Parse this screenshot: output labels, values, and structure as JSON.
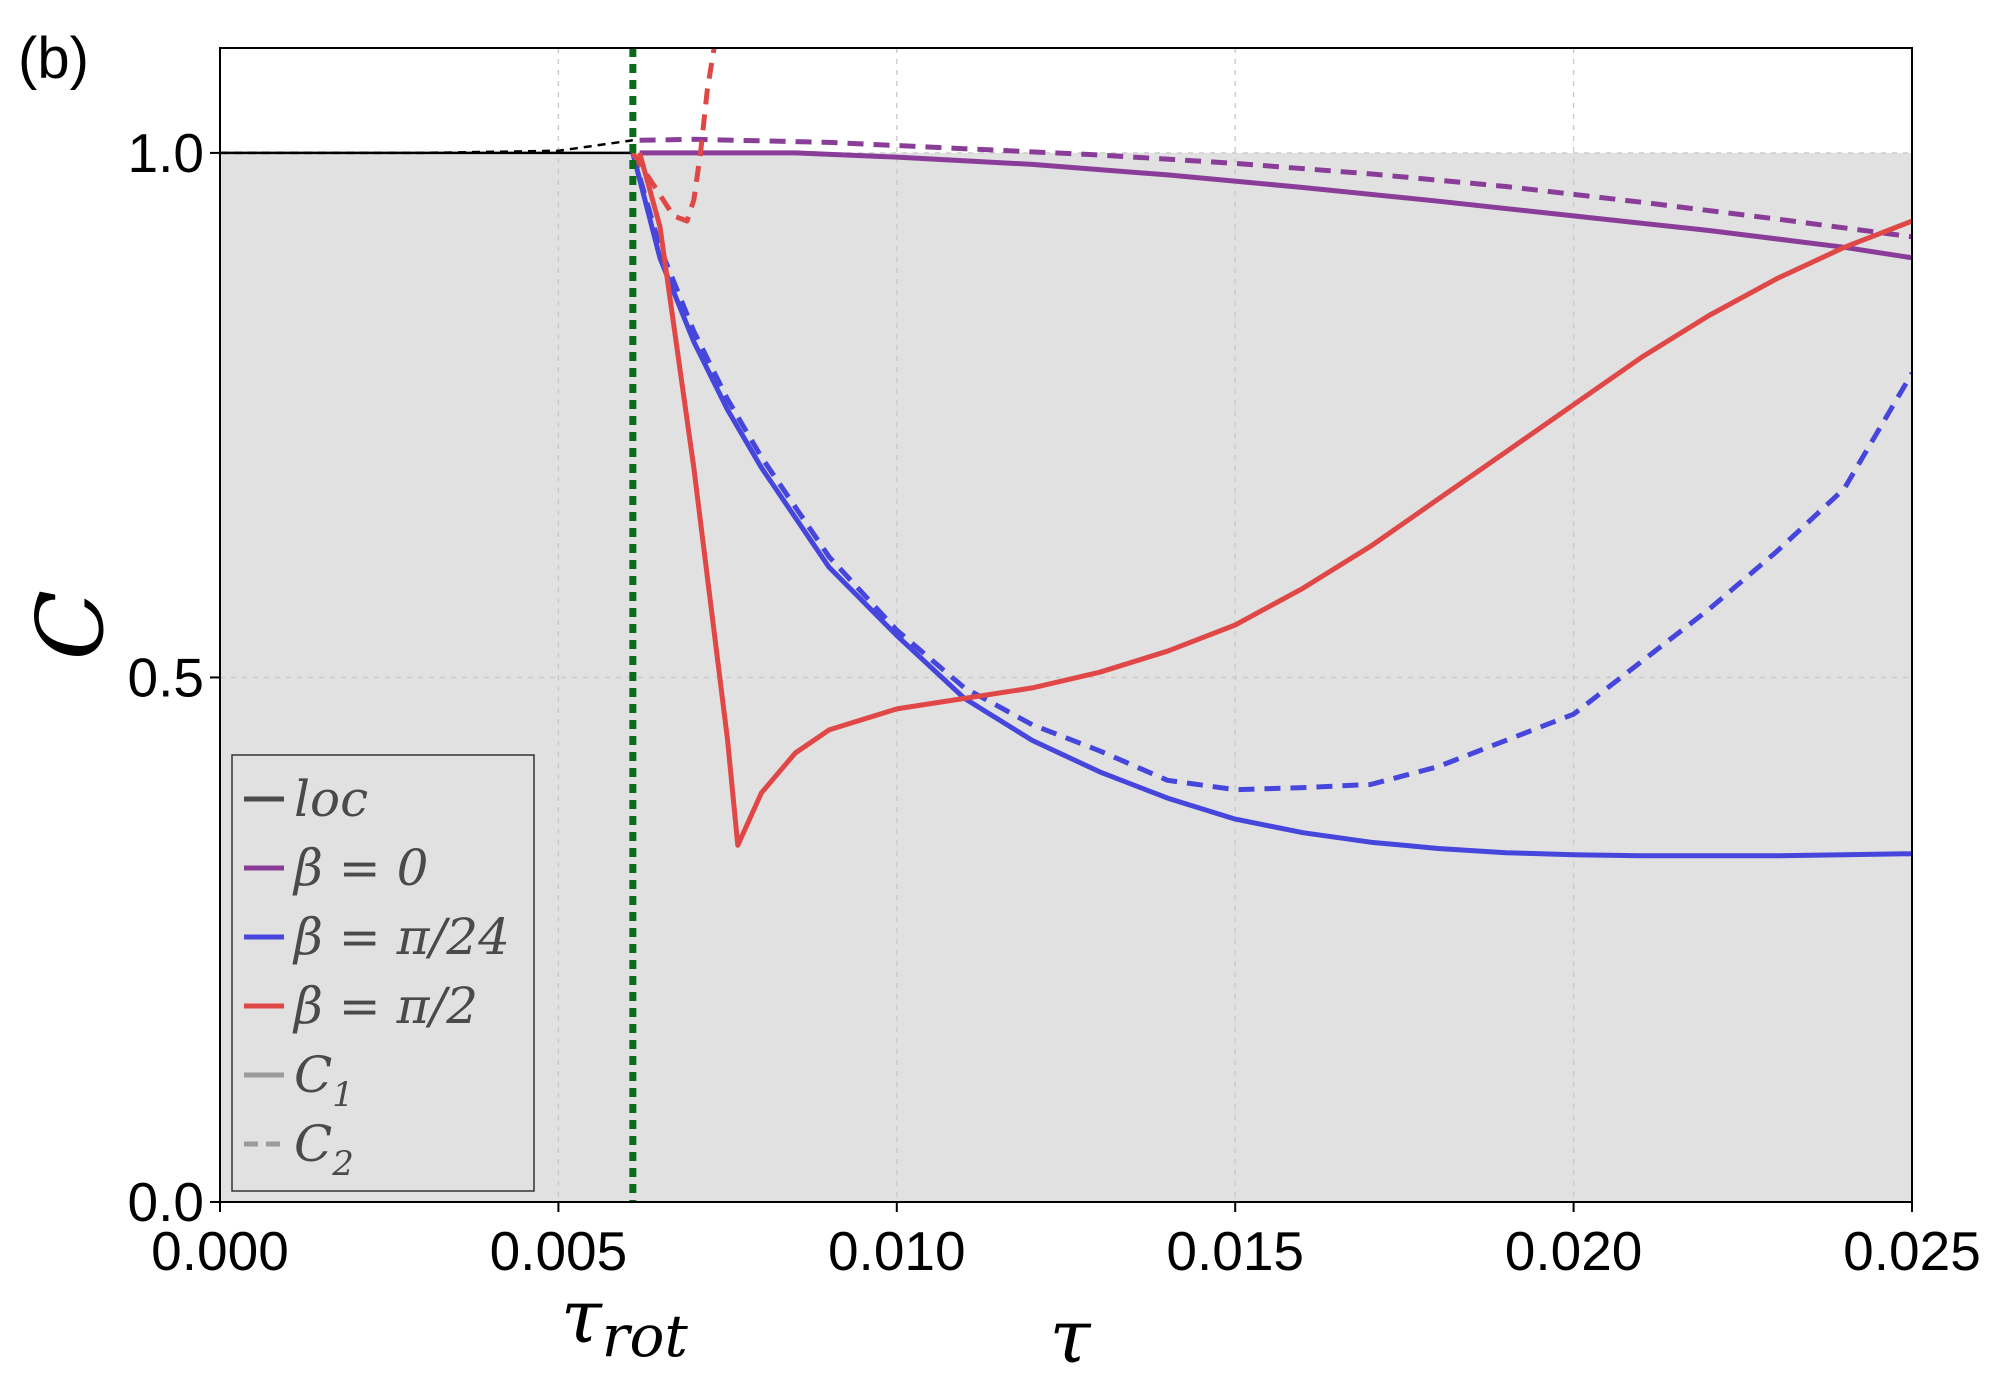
{
  "panel_label": "(b)",
  "colors": {
    "shade": "#e1e1e1",
    "loc": "#000000",
    "beta0": "#8a3d98",
    "beta_pi24": "#4646dc",
    "beta_pi2": "#e04848",
    "tau_rot_line": "#0b6b1a",
    "legend_style": "#9a9a9a"
  },
  "chart_data": {
    "type": "line",
    "title": "",
    "xlabel": "τ",
    "ylabel": "C",
    "xlim": [
      0.0,
      0.025
    ],
    "ylim": [
      0.0,
      1.1
    ],
    "grid": true,
    "shaded_region": {
      "y_from": 0.0,
      "y_to": 1.0
    },
    "x_ticks": [
      "0.000",
      "0.005",
      "0.010",
      "0.015",
      "0.020",
      "0.025"
    ],
    "y_ticks": [
      "0.0",
      "0.5",
      "1.0"
    ],
    "vertical_marker": {
      "x": 0.0061,
      "label": "τrot",
      "label_base": "τ",
      "label_sub": "rot"
    },
    "legend": {
      "position": "lower-left",
      "entries": [
        {
          "label": "loc",
          "style": "solid",
          "color": "#4a4a4a"
        },
        {
          "label": "β = 0",
          "style": "solid",
          "color": "#8a3d98"
        },
        {
          "label": "β = π/24",
          "style": "solid",
          "color": "#4646dc"
        },
        {
          "label": "β = π/2",
          "style": "solid",
          "color": "#e04848"
        },
        {
          "label": "C1",
          "base": "C",
          "sub": "1",
          "style": "solid",
          "color": "#9a9a9a"
        },
        {
          "label": "C2",
          "base": "C",
          "sub": "2",
          "style": "dashed",
          "color": "#9a9a9a"
        }
      ]
    },
    "series": [
      {
        "name": "loc",
        "style": "solid",
        "color": "#000000",
        "x": [
          0.0,
          0.0061
        ],
        "y": [
          1.0,
          1.0
        ]
      },
      {
        "name": "loc",
        "style": "dashed",
        "color": "#000000",
        "x": [
          0.0,
          0.003,
          0.005,
          0.0061
        ],
        "y": [
          1.0,
          1.0,
          1.002,
          1.012
        ]
      },
      {
        "name": "β = 0",
        "style": "solid",
        "color": "#8a3d98",
        "x": [
          0.0062,
          0.007,
          0.0085,
          0.01,
          0.012,
          0.014,
          0.016,
          0.018,
          0.02,
          0.022,
          0.024,
          0.025
        ],
        "y": [
          1.0,
          1.0,
          1.0,
          0.996,
          0.989,
          0.979,
          0.967,
          0.954,
          0.94,
          0.926,
          0.91,
          0.9
        ]
      },
      {
        "name": "β = 0",
        "style": "dashed",
        "color": "#8a3d98",
        "x": [
          0.0062,
          0.007,
          0.009,
          0.011,
          0.013,
          0.015,
          0.017,
          0.019,
          0.021,
          0.023,
          0.025
        ],
        "y": [
          1.012,
          1.013,
          1.01,
          1.004,
          0.998,
          0.99,
          0.98,
          0.968,
          0.953,
          0.937,
          0.92
        ]
      },
      {
        "name": "β = π/24",
        "style": "solid",
        "color": "#4646dc",
        "x": [
          0.0061,
          0.0065,
          0.007,
          0.0075,
          0.008,
          0.009,
          0.01,
          0.011,
          0.012,
          0.013,
          0.014,
          0.015,
          0.016,
          0.017,
          0.018,
          0.019,
          0.02,
          0.021,
          0.022,
          0.023,
          0.024,
          0.025
        ],
        "y": [
          1.0,
          0.9,
          0.82,
          0.755,
          0.7,
          0.605,
          0.54,
          0.48,
          0.44,
          0.41,
          0.385,
          0.365,
          0.352,
          0.343,
          0.337,
          0.333,
          0.331,
          0.33,
          0.33,
          0.33,
          0.331,
          0.332
        ]
      },
      {
        "name": "β = π/24",
        "style": "dashed",
        "color": "#4646dc",
        "x": [
          0.0061,
          0.0065,
          0.007,
          0.0075,
          0.008,
          0.009,
          0.01,
          0.011,
          0.012,
          0.013,
          0.014,
          0.015,
          0.016,
          0.017,
          0.018,
          0.019,
          0.02,
          0.021,
          0.022,
          0.023,
          0.024,
          0.025
        ],
        "y": [
          1.0,
          0.91,
          0.83,
          0.765,
          0.71,
          0.615,
          0.545,
          0.49,
          0.455,
          0.43,
          0.402,
          0.393,
          0.395,
          0.398,
          0.415,
          0.44,
          0.465,
          0.515,
          0.565,
          0.62,
          0.68,
          0.79
        ]
      },
      {
        "name": "β = π/2",
        "style": "solid",
        "color": "#e04848",
        "x": [
          0.0062,
          0.0065,
          0.007,
          0.0075,
          0.00765,
          0.008,
          0.0085,
          0.009,
          0.01,
          0.011,
          0.012,
          0.013,
          0.014,
          0.015,
          0.016,
          0.017,
          0.018,
          0.019,
          0.02,
          0.021,
          0.022,
          0.023,
          0.024,
          0.025
        ],
        "y": [
          1.0,
          0.93,
          0.7,
          0.44,
          0.34,
          0.39,
          0.428,
          0.45,
          0.47,
          0.48,
          0.49,
          0.505,
          0.525,
          0.55,
          0.585,
          0.625,
          0.67,
          0.715,
          0.76,
          0.805,
          0.845,
          0.88,
          0.91,
          0.935
        ]
      },
      {
        "name": "β = π/2",
        "style": "dashed",
        "color": "#e04848",
        "x": [
          0.0061,
          0.0064,
          0.0067,
          0.0069,
          0.007,
          0.0071,
          0.0072,
          0.0073
        ],
        "y": [
          1.0,
          0.97,
          0.94,
          0.935,
          0.955,
          1.0,
          1.06,
          1.1
        ]
      }
    ]
  }
}
